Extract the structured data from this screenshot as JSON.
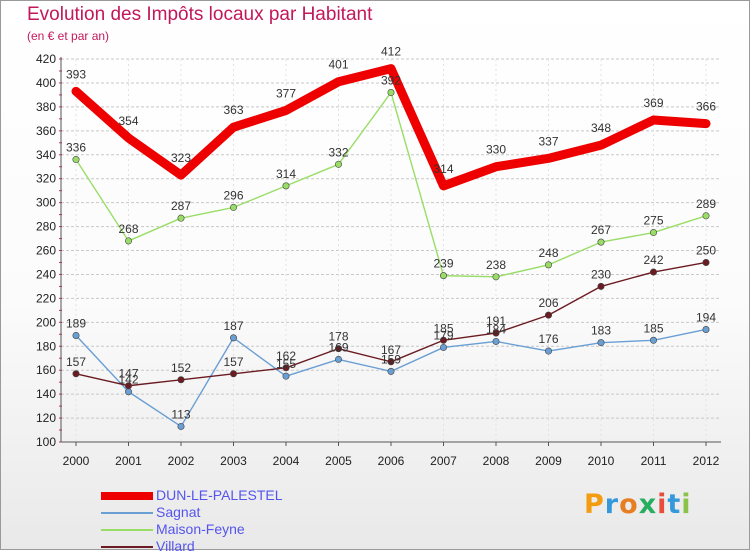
{
  "title": "Evolution des Impôts locaux par Habitant",
  "subtitle": "(en € et par an)",
  "brand": {
    "text": "Proxiti",
    "colors": [
      "#f39c12",
      "#3498db",
      "#e67e22",
      "#27ae60",
      "#e74c3c",
      "#3498db",
      "#8bc34a"
    ]
  },
  "chart_data": {
    "type": "line",
    "x": [
      "2000",
      "2001",
      "2002",
      "2003",
      "2004",
      "2005",
      "2006",
      "2007",
      "2008",
      "2009",
      "2010",
      "2011",
      "2012"
    ],
    "ylim": [
      100,
      420
    ],
    "yticks": [
      100,
      120,
      140,
      160,
      180,
      200,
      220,
      240,
      260,
      280,
      300,
      320,
      340,
      360,
      380,
      400,
      420
    ],
    "grid": "horizontal",
    "legend_position": "bottom-left",
    "series": [
      {
        "name": "DUN-LE-PALESTEL",
        "color": "#ee0000",
        "values": [
          393,
          354,
          323,
          363,
          377,
          401,
          412,
          314,
          330,
          337,
          348,
          369,
          366
        ]
      },
      {
        "name": "Sagnat",
        "color": "#6a9fd4",
        "values": [
          189,
          142,
          113,
          187,
          155,
          169,
          159,
          179,
          184,
          176,
          183,
          185,
          194
        ]
      },
      {
        "name": "Maison-Feyne",
        "color": "#99dd66",
        "values": [
          336,
          268,
          287,
          296,
          314,
          332,
          392,
          239,
          238,
          248,
          267,
          275,
          289
        ]
      },
      {
        "name": "Villard",
        "color": "#6b1c22",
        "values": [
          157,
          147,
          152,
          157,
          162,
          178,
          167,
          185,
          191,
          206,
          230,
          242,
          250
        ]
      }
    ]
  }
}
